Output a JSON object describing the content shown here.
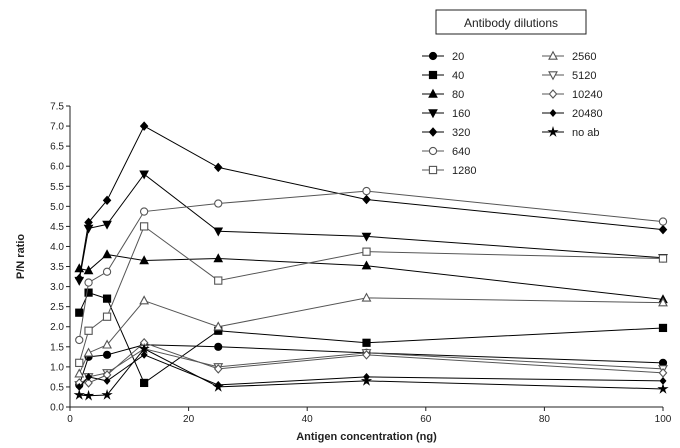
{
  "chart_data": {
    "type": "line",
    "title": "",
    "xlabel": "Antigen concentration (ng)",
    "ylabel": "P/N ratio",
    "xlim": [
      0,
      100
    ],
    "ylim": [
      0,
      7.5
    ],
    "x_ticks": [
      "0",
      "20",
      "40",
      "60",
      "80",
      "100"
    ],
    "y_ticks": [
      "0.0",
      "0.5",
      "1.0",
      "1.5",
      "2.0",
      "2.5",
      "3.0",
      "3.5",
      "4.0",
      "4.5",
      "5.0",
      "5.5",
      "6.0",
      "6.5",
      "7.0",
      "7.5"
    ],
    "grid": false,
    "legend": {
      "title": "Antibody dilutions",
      "position": "top-right"
    },
    "x": [
      1.56,
      3.13,
      6.25,
      12.5,
      25,
      50,
      100
    ],
    "series": [
      {
        "name": "20",
        "marker": "circle-filled",
        "color": "#000000",
        "values": [
          0.55,
          1.25,
          1.3,
          1.55,
          1.5,
          1.35,
          1.1
        ]
      },
      {
        "name": "40",
        "marker": "square-filled",
        "color": "#000000",
        "values": [
          2.35,
          2.85,
          2.7,
          0.6,
          1.9,
          1.6,
          1.97
        ]
      },
      {
        "name": "80",
        "marker": "triangle-filled",
        "color": "#000000",
        "values": [
          3.45,
          3.4,
          3.8,
          3.65,
          3.7,
          3.52,
          2.68
        ]
      },
      {
        "name": "160",
        "marker": "triangle-down-filled",
        "color": "#000000",
        "values": [
          3.15,
          4.45,
          4.55,
          5.8,
          4.38,
          4.25,
          3.72
        ]
      },
      {
        "name": "320",
        "marker": "diamond-filled",
        "color": "#000000",
        "values": [
          3.2,
          4.6,
          5.15,
          7.0,
          5.97,
          5.17,
          4.42
        ]
      },
      {
        "name": "640",
        "marker": "circle-open",
        "color": "#555555",
        "values": [
          1.67,
          3.1,
          3.37,
          4.87,
          5.07,
          5.38,
          4.62
        ]
      },
      {
        "name": "1280",
        "marker": "square-open",
        "color": "#555555",
        "values": [
          1.1,
          1.9,
          2.25,
          4.5,
          3.15,
          3.87,
          3.7
        ]
      },
      {
        "name": "2560",
        "marker": "triangle-open",
        "color": "#555555",
        "values": [
          0.83,
          1.35,
          1.55,
          2.65,
          2.0,
          2.72,
          2.6
        ]
      },
      {
        "name": "5120",
        "marker": "triangle-down-open",
        "color": "#555555",
        "values": [
          0.55,
          0.75,
          0.85,
          1.45,
          1.0,
          1.35,
          0.95
        ]
      },
      {
        "name": "10240",
        "marker": "diamond-open",
        "color": "#555555",
        "values": [
          0.6,
          0.6,
          0.8,
          1.6,
          0.95,
          1.3,
          0.85
        ]
      },
      {
        "name": "20480",
        "marker": "diamond-small",
        "color": "#000000",
        "values": [
          0.5,
          0.75,
          0.65,
          1.3,
          0.55,
          0.75,
          0.65
        ]
      },
      {
        "name": "no ab",
        "marker": "star",
        "color": "#000000",
        "values": [
          0.3,
          0.28,
          0.3,
          1.45,
          0.5,
          0.65,
          0.45
        ]
      }
    ]
  }
}
